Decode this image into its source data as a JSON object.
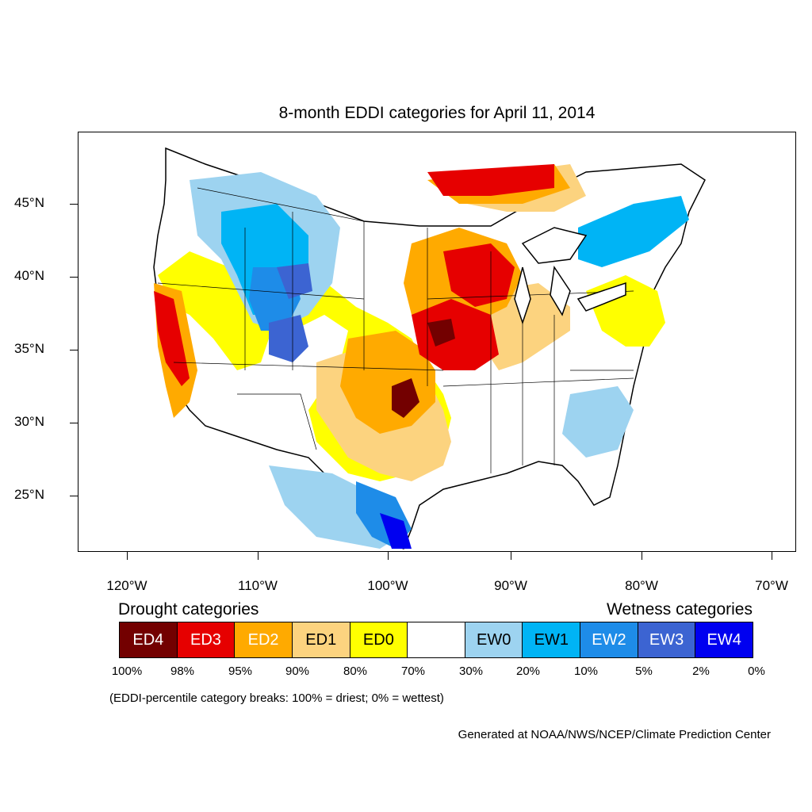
{
  "title": "8-month EDDI categories for April 11, 2014",
  "lat_labels": [
    "45°N",
    "40°N",
    "35°N",
    "30°N",
    "25°N"
  ],
  "lon_labels": [
    "120°W",
    "110°W",
    "100°W",
    "90°W",
    "80°W",
    "70°W"
  ],
  "legend": {
    "drought_title": "Drought categories",
    "wetness_title": "Wetness categories",
    "categories": [
      {
        "label": "ED4",
        "color": "#730000",
        "text_color": "#ffffff"
      },
      {
        "label": "ED3",
        "color": "#e60000",
        "text_color": "#ffffff"
      },
      {
        "label": "ED2",
        "color": "#ffaa00",
        "text_color": "#ffffff"
      },
      {
        "label": "ED1",
        "color": "#fcd37f",
        "text_color": "#000000"
      },
      {
        "label": "ED0",
        "color": "#ffff00",
        "text_color": "#000000"
      },
      {
        "label": "",
        "color": "#ffffff",
        "text_color": "#000000"
      },
      {
        "label": "EW0",
        "color": "#9dd3f0",
        "text_color": "#000000"
      },
      {
        "label": "EW1",
        "color": "#00b4f5",
        "text_color": "#000000"
      },
      {
        "label": "EW2",
        "color": "#1e8ce8",
        "text_color": "#ffffff"
      },
      {
        "label": "EW3",
        "color": "#3c64d2",
        "text_color": "#ffffff"
      },
      {
        "label": "EW4",
        "color": "#0000f0",
        "text_color": "#ffffff"
      }
    ],
    "breaks": [
      "100%",
      "98%",
      "95%",
      "90%",
      "80%",
      "70%",
      "30%",
      "20%",
      "10%",
      "5%",
      "2%",
      "0%"
    ]
  },
  "note": "(EDDI-percentile category breaks: 100% = driest; 0% = wettest)",
  "credit": "Generated at NOAA/NWS/NCEP/Climate Prediction Center"
}
